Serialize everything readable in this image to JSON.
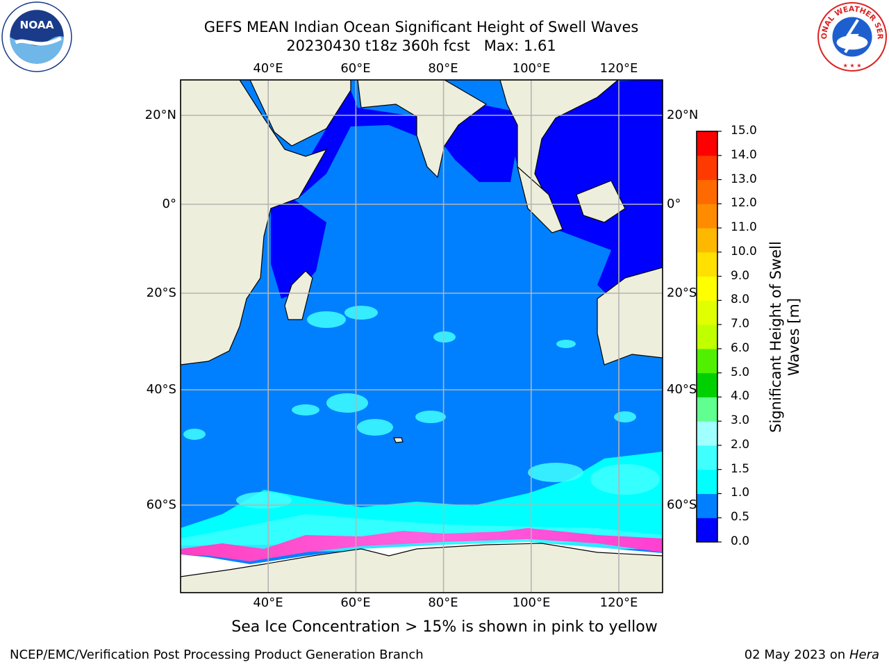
{
  "header": {
    "title": "GEFS MEAN Indian Ocean Significant Height of Swell Waves",
    "subtitle": "20230430 t18z 360h fcst",
    "max_label": "Max: 1.61"
  },
  "logos": {
    "left": "noaa-logo",
    "left_text": "NOAA",
    "right": "nws-logo",
    "right_text": "NATIONAL WEATHER SERVICE"
  },
  "map": {
    "lon_range": [
      20,
      130
    ],
    "lat_range": [
      -75,
      28
    ],
    "lon_ticks": [
      "40°E",
      "60°E",
      "80°E",
      "100°E",
      "120°E"
    ],
    "lat_ticks": [
      "20°N",
      "0°",
      "20°S",
      "40°S",
      "60°S"
    ],
    "grid": true,
    "colors": {
      "land": "#eeeedc",
      "ice_free_sea": "#ffffff",
      "grid": "#b4b4b4"
    }
  },
  "colorbar": {
    "title": "Significant Height of Swell Waves [m]",
    "title_line1": "Significant Height of Swell",
    "title_line2": "Waves [m]",
    "labels": [
      "0.0",
      "0.5",
      "1.0",
      "1.5",
      "2.0",
      "3.0",
      "4.0",
      "5.0",
      "6.0",
      "7.0",
      "8.0",
      "9.0",
      "10.0",
      "11.0",
      "12.0",
      "13.0",
      "14.0",
      "15.0"
    ],
    "colors": [
      "#0000ff",
      "#0080ff",
      "#00ffff",
      "#40ffff",
      "#a0ffff",
      "#60ff90",
      "#00d000",
      "#50f000",
      "#c0ff00",
      "#e0ff00",
      "#ffff00",
      "#ffe000",
      "#ffb800",
      "#ff8c00",
      "#ff6a00",
      "#ff3a00",
      "#ff0000"
    ]
  },
  "footer": {
    "ice_note": "Sea Ice Concentration > 15% is shown in pink to yellow",
    "credit": "NCEP/EMC/Verification Post Processing Product Generation Branch",
    "date": "02 May 2023 on",
    "machine": "Hera"
  }
}
